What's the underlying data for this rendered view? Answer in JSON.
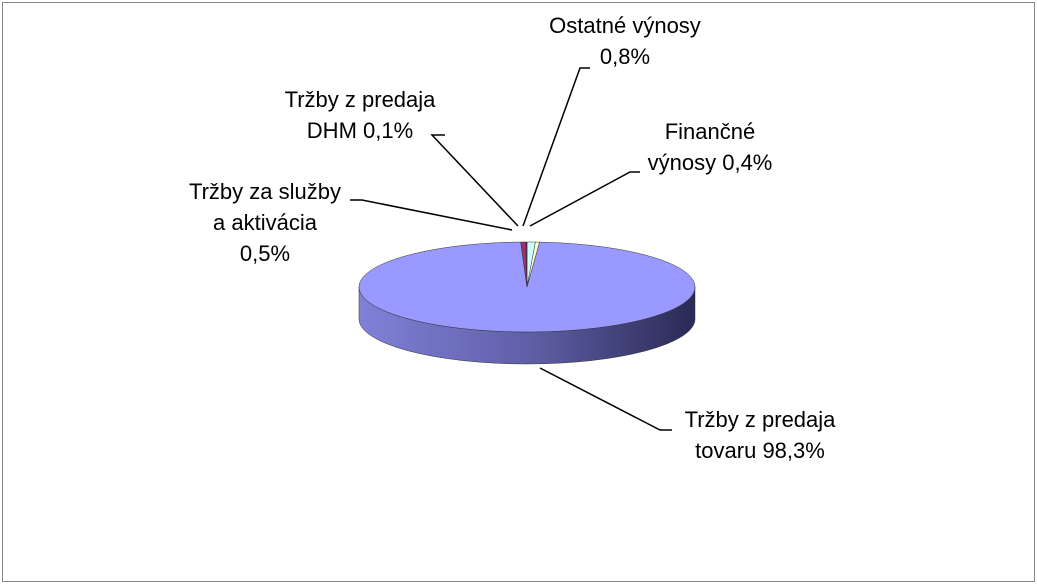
{
  "chart_data": {
    "type": "pie3d",
    "categories": [
      "Ostatné výnosy",
      "Finančné výnosy",
      "Tržby z predaja tovaru",
      "Tržby za služby a aktivácia",
      "Tržby z predaja DHM"
    ],
    "values": [
      0.8,
      0.4,
      98.3,
      0.5,
      0.1
    ],
    "value_labels": [
      "0,8%",
      "0,4%",
      "98,3%",
      "0,5%",
      "0,1%"
    ],
    "colors": [
      "#ccffff",
      "#ffffcc",
      "#9999ff",
      "#993366",
      "#660066"
    ]
  }
}
